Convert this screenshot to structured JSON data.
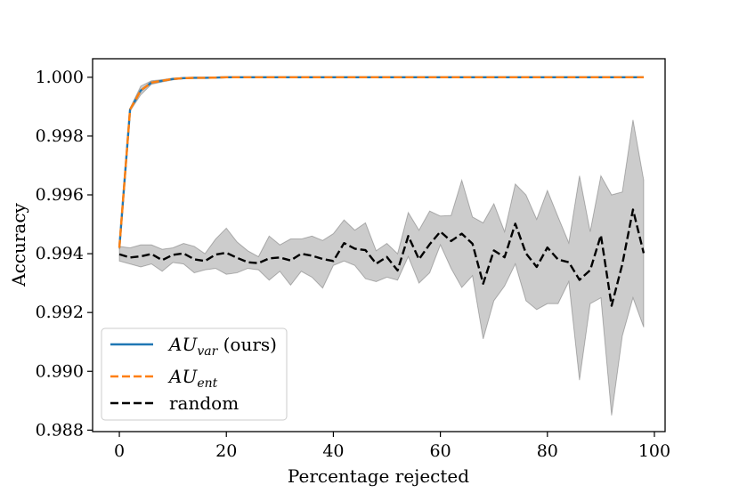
{
  "chart_data": {
    "type": "line",
    "xlabel": "Percentage rejected",
    "ylabel": "Accuracy",
    "xlim": [
      -5,
      102
    ],
    "ylim": [
      0.98795,
      1.00063
    ],
    "xticks": [
      0,
      20,
      40,
      60,
      80,
      100
    ],
    "xtick_labels": [
      "0",
      "20",
      "40",
      "60",
      "80",
      "100"
    ],
    "yticks": [
      0.988,
      0.99,
      0.992,
      0.994,
      0.996,
      0.998,
      1.0
    ],
    "ytick_labels": [
      "0.988",
      "0.990",
      "0.992",
      "0.994",
      "0.996",
      "0.998",
      "1.000"
    ],
    "grid": false,
    "legend_position": "lower-left",
    "x": [
      0,
      2,
      4,
      6,
      8,
      10,
      12,
      14,
      16,
      18,
      20,
      22,
      24,
      26,
      28,
      30,
      32,
      34,
      36,
      38,
      40,
      42,
      44,
      46,
      48,
      50,
      52,
      54,
      56,
      58,
      60,
      62,
      64,
      66,
      68,
      70,
      72,
      74,
      76,
      78,
      80,
      82,
      84,
      86,
      88,
      90,
      92,
      94,
      96,
      98
    ],
    "series": [
      {
        "name_base": "AU",
        "name_sub": "var",
        "name_suffix": " (ours)",
        "color": "#1f77b4",
        "dash": "solid",
        "values": [
          0.9942,
          0.9989,
          0.99955,
          0.99982,
          0.99988,
          0.99994,
          0.99997,
          0.99998,
          0.99998,
          0.99999,
          1.0,
          1.0,
          1.0,
          1.0,
          1.0,
          1.0,
          1.0,
          1.0,
          1.0,
          1.0,
          1.0,
          1.0,
          1.0,
          1.0,
          1.0,
          1.0,
          1.0,
          1.0,
          1.0,
          1.0,
          1.0,
          1.0,
          1.0,
          1.0,
          1.0,
          1.0,
          1.0,
          1.0,
          1.0,
          1.0,
          1.0,
          1.0,
          1.0,
          1.0,
          1.0,
          1.0,
          1.0,
          1.0,
          1.0,
          1.0
        ],
        "band_upper": [
          0.99425,
          0.99895,
          0.9997,
          0.99988,
          0.99992,
          0.99997,
          0.99999,
          1.0,
          1.0,
          1.0,
          1.0,
          1.0,
          1.0,
          1.0,
          1.0,
          1.0,
          1.0,
          1.0,
          1.0,
          1.0,
          1.0,
          1.0,
          1.0,
          1.0,
          1.0,
          1.0,
          1.0,
          1.0,
          1.0,
          1.0,
          1.0,
          1.0,
          1.0,
          1.0,
          1.0,
          1.0,
          1.0,
          1.0,
          1.0,
          1.0,
          1.0,
          1.0,
          1.0,
          1.0,
          1.0,
          1.0,
          1.0,
          1.0,
          1.0,
          1.0
        ],
        "band_lower": [
          0.99415,
          0.99885,
          0.9994,
          0.99976,
          0.99984,
          0.99991,
          0.99995,
          0.99996,
          0.99996,
          0.99998,
          1.0,
          1.0,
          1.0,
          1.0,
          1.0,
          1.0,
          1.0,
          1.0,
          1.0,
          1.0,
          1.0,
          1.0,
          1.0,
          1.0,
          1.0,
          1.0,
          1.0,
          1.0,
          1.0,
          1.0,
          1.0,
          1.0,
          1.0,
          1.0,
          1.0,
          1.0,
          1.0,
          1.0,
          1.0,
          1.0,
          1.0,
          1.0,
          1.0,
          1.0,
          1.0,
          1.0,
          1.0,
          1.0,
          1.0,
          1.0
        ]
      },
      {
        "name_base": "AU",
        "name_sub": "ent",
        "name_suffix": "",
        "color": "#ff7f0e",
        "dash": "dashed",
        "values": [
          0.9942,
          0.9989,
          0.99955,
          0.99982,
          0.99988,
          0.99994,
          0.99997,
          0.99998,
          0.99998,
          0.99999,
          1.0,
          1.0,
          1.0,
          1.0,
          1.0,
          1.0,
          1.0,
          1.0,
          1.0,
          1.0,
          1.0,
          1.0,
          1.0,
          1.0,
          1.0,
          1.0,
          1.0,
          1.0,
          1.0,
          1.0,
          1.0,
          1.0,
          1.0,
          1.0,
          1.0,
          1.0,
          1.0,
          1.0,
          1.0,
          1.0,
          1.0,
          1.0,
          1.0,
          1.0,
          1.0,
          1.0,
          1.0,
          1.0,
          1.0,
          1.0
        ]
      },
      {
        "name_base": "random",
        "name_sub": "",
        "name_suffix": "",
        "color": "#000000",
        "dash": "dashed",
        "values": [
          0.99398,
          0.99387,
          0.99391,
          0.99399,
          0.99378,
          0.99396,
          0.99401,
          0.99381,
          0.99375,
          0.99397,
          0.99403,
          0.99386,
          0.99371,
          0.99368,
          0.99384,
          0.99387,
          0.99377,
          0.994,
          0.99393,
          0.99382,
          0.99375,
          0.99436,
          0.99417,
          0.99412,
          0.99366,
          0.99389,
          0.99343,
          0.9946,
          0.99381,
          0.99432,
          0.99475,
          0.99443,
          0.99468,
          0.99434,
          0.99298,
          0.99411,
          0.99388,
          0.99502,
          0.99401,
          0.99355,
          0.99421,
          0.9938,
          0.99371,
          0.99311,
          0.99344,
          0.99463,
          0.99223,
          0.99364,
          0.9955,
          0.99402
        ],
        "band_upper": [
          0.99425,
          0.9942,
          0.9943,
          0.9943,
          0.99415,
          0.9942,
          0.99435,
          0.99425,
          0.994,
          0.9945,
          0.99487,
          0.9944,
          0.9941,
          0.9939,
          0.9946,
          0.9943,
          0.9945,
          0.9945,
          0.9946,
          0.99445,
          0.99468,
          0.99515,
          0.9948,
          0.99505,
          0.9941,
          0.99435,
          0.994,
          0.9954,
          0.9948,
          0.99545,
          0.99528,
          0.9953,
          0.9965,
          0.99525,
          0.99505,
          0.9957,
          0.99475,
          0.99637,
          0.996,
          0.99517,
          0.99615,
          0.99525,
          0.99437,
          0.99665,
          0.99475,
          0.99665,
          0.996,
          0.9961,
          0.99855,
          0.9965
        ],
        "band_lower": [
          0.99375,
          0.99365,
          0.99355,
          0.99365,
          0.9934,
          0.9937,
          0.99365,
          0.99335,
          0.99345,
          0.9935,
          0.9933,
          0.99335,
          0.9935,
          0.99345,
          0.9931,
          0.9934,
          0.99293,
          0.9934,
          0.9932,
          0.99283,
          0.9936,
          0.99375,
          0.9936,
          0.99315,
          0.99305,
          0.9932,
          0.9931,
          0.9939,
          0.993,
          0.99335,
          0.9943,
          0.9935,
          0.99285,
          0.99325,
          0.9911,
          0.9924,
          0.9929,
          0.99365,
          0.9924,
          0.9921,
          0.9923,
          0.9923,
          0.99305,
          0.9897,
          0.9923,
          0.9925,
          0.9885,
          0.9912,
          0.9925,
          0.9915
        ]
      }
    ]
  }
}
